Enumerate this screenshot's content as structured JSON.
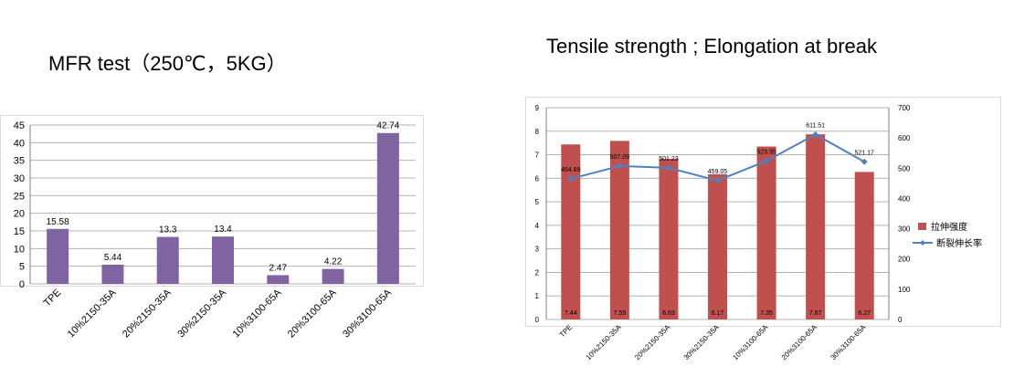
{
  "colors": {
    "mfr_bar": "#8064a2",
    "strength_bar": "#c0504d",
    "elongation_line": "#4f81bd",
    "grid": "#b3b3b3",
    "axis_text": "#000000"
  },
  "charts": {
    "left": {
      "title": "MFR test（250℃，5KG）"
    },
    "right": {
      "title": "Tensile strength ; Elongation at break",
      "legend": {
        "bar_label": "拉伸强度",
        "line_label": "断裂伸长率"
      }
    }
  },
  "chart_data": [
    {
      "type": "bar",
      "title": "MFR test（250℃，5KG）",
      "categories": [
        "TPE",
        "10%2150-35A",
        "20%2150-35A",
        "30%2150-35A",
        "10%3100-65A",
        "20%3100-65A",
        "30%3100-65A"
      ],
      "values": [
        15.58,
        5.44,
        13.3,
        13.4,
        2.47,
        4.22,
        42.74
      ],
      "value_labels": [
        "15.58",
        "5.44",
        "13.3",
        "13.4",
        "2.47",
        "4.22",
        "42.74"
      ],
      "ylim": [
        0,
        45
      ],
      "yticks": [
        0,
        5,
        10,
        15,
        20,
        25,
        30,
        35,
        40,
        45
      ],
      "grid": true,
      "legend": "none"
    },
    {
      "type": "bar",
      "title": "Tensile strength ; Elongation at break",
      "categories": [
        "TPE",
        "10%2150-35A",
        "20%2150-35A",
        "30%2150-35A",
        "10%3100-65A",
        "20%3100-65A",
        "30%3100-65A"
      ],
      "series": [
        {
          "name": "拉伸强度",
          "kind": "bar",
          "axis": "left",
          "values": [
            7.44,
            7.59,
            6.83,
            6.17,
            7.35,
            7.87,
            6.27
          ],
          "value_labels": [
            "7.44",
            "7.59",
            "6.83",
            "6.17",
            "7.35",
            "7.87",
            "6.27"
          ]
        },
        {
          "name": "断裂伸长率",
          "kind": "line",
          "axis": "right",
          "values": [
            464.89,
            507.09,
            501.23,
            459.05,
            523.95,
            611.51,
            521.17
          ],
          "value_labels": [
            "464.89",
            "507.09",
            "501.23",
            "459.05",
            "523.95",
            "611.51",
            "521.17"
          ]
        }
      ],
      "ylim": [
        0,
        9
      ],
      "yticks": [
        0,
        1,
        2,
        3,
        4,
        5,
        6,
        7,
        8,
        9
      ],
      "y2lim": [
        0,
        700
      ],
      "y2ticks": [
        0,
        100,
        200,
        300,
        400,
        500,
        600,
        700
      ],
      "grid": true,
      "legend": "right"
    }
  ]
}
